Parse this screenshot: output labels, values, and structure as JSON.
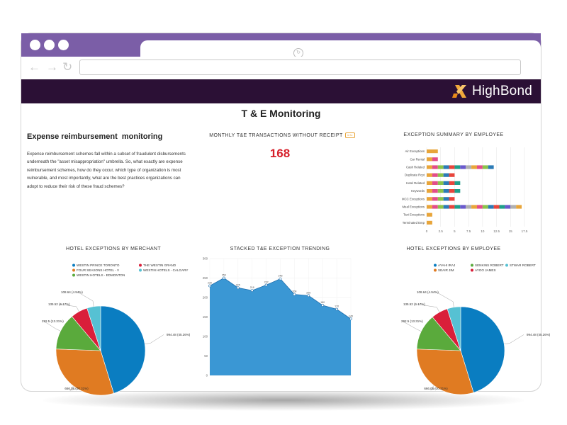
{
  "browser": {
    "tab_icon": "reload-icon",
    "nav_icons": [
      "back-arrow-icon",
      "forward-arrow-icon",
      "refresh-icon"
    ]
  },
  "app": {
    "brand": "HighBond",
    "brand_color": "#f0a93b",
    "header_color": "#2b1035",
    "frame_color": "#7b5ea7"
  },
  "page": {
    "title": "T & E Monitoring"
  },
  "intro": {
    "title": "Expense reimbursement  monitoring",
    "text": "Expense reimbursement schemes fall within a subset of fraudulent disbursements underneath the \"asset misappropriation\" umbrella. So, what exactly are expense reimbursement schemes, how do they occur, which type of organization is most vulnerable, and most importantly, what are the best practices organizations can adopt to reduce their risk of these fraud schemes?"
  },
  "kpi": {
    "title": "MONTHLY T&E TRANSACTIONS WITHOUT RECEIPT",
    "badge": "info",
    "value": "168",
    "color": "#d61f2a"
  },
  "charts": {
    "exception_summary_title": "EXCEPTION SUMMARY BY EMPLOYEE",
    "merchant_title": "HOTEL EXCEPTIONS BY MERCHANT",
    "trend_title": "STACKED T&E EXCEPTION TRENDING",
    "employee_title": "HOTEL EXCEPTIONS BY EMPLOYEE"
  },
  "chart_data": [
    {
      "type": "bar",
      "orientation": "horizontal",
      "stacked": true,
      "title": "EXCEPTION SUMMARY BY EMPLOYEE",
      "categories": [
        "Air Exceptions",
        "Car Rental",
        "Cash Related",
        "Duplicate Rcpt",
        "Hotel Related",
        "Keywords",
        "MCC Exceptions",
        "Meal Exceptions",
        "Taxi Exceptions",
        "Terminated Emp"
      ],
      "xlim": [
        0,
        17.5
      ],
      "xticks": [
        0,
        2.5,
        5,
        7.5,
        10,
        12.5,
        15,
        17.5
      ],
      "grid": true,
      "palette": [
        "#e8a53a",
        "#e34d8a",
        "#8bc34a",
        "#2c7bb6",
        "#e8453c",
        "#1f9f8a",
        "#6a5acd",
        "#b0b0b0"
      ],
      "segments": [
        [
          2
        ],
        [
          1,
          1
        ],
        [
          1,
          1,
          1,
          1,
          1,
          1,
          1,
          1,
          1,
          1,
          1,
          1
        ],
        [
          1,
          1,
          1,
          1,
          1
        ],
        [
          1,
          1,
          1,
          1,
          1,
          1
        ],
        [
          1,
          1,
          1,
          1,
          1,
          1
        ],
        [
          1,
          1,
          1,
          1,
          1
        ],
        [
          1,
          1,
          1,
          1,
          1,
          1,
          1,
          1,
          1,
          1,
          1,
          1,
          1,
          1,
          1,
          1,
          1
        ],
        [
          1
        ],
        [
          1
        ]
      ]
    },
    {
      "type": "pie",
      "title": "HOTEL EXCEPTIONS BY MERCHANT",
      "legend_position": "top",
      "series": [
        {
          "name": "WESTIN PRINCE TORONTO",
          "value": 994.48,
          "label": "994.48 (45.26%)",
          "color": "#0a7dc1"
        },
        {
          "name": "FOUR SEASONS HOTEL - V",
          "value": 666.08,
          "label": "666.08 (30.31%)",
          "color": "#e07b22"
        },
        {
          "name": "WESTIN HOTELS - EDMONTON",
          "value": 292.5,
          "label": "292.5 (13.31%)",
          "color": "#5aaa3c"
        },
        {
          "name": "THE WESTIN GRAND",
          "value": 135.52,
          "label": "135.52 (6.17%)",
          "color": "#d91f3a"
        },
        {
          "name": "WESTIN HOTELS - CALGARY",
          "value": 108.64,
          "label": "108.64 (4.94%)",
          "color": "#56c1d3"
        }
      ]
    },
    {
      "type": "area",
      "title": "STACKED T&E EXCEPTION TRENDING",
      "ylim": [
        0,
        300
      ],
      "yticks": [
        0,
        50,
        100,
        150,
        200,
        250,
        300
      ],
      "grid": true,
      "color": "#3a97d4",
      "values": [
        230,
        250,
        225,
        218,
        232,
        248,
        208,
        205,
        180,
        170,
        145
      ]
    },
    {
      "type": "pie",
      "title": "HOTEL EXCEPTIONS BY EMPLOYEE",
      "legend_position": "top",
      "series": [
        {
          "name": "AYAHI IRAJ",
          "value": 994.48,
          "label": "994.48 (45.26%)",
          "color": "#0a7dc1"
        },
        {
          "name": "SEAIR JIM",
          "value": 666.08,
          "label": "666.08 (30.31%)",
          "color": "#e07b22"
        },
        {
          "name": "SENKINS ROBERT",
          "value": 292.5,
          "label": "292.5 (13.31%)",
          "color": "#5aaa3c"
        },
        {
          "name": "AYOO JAMES",
          "value": 135.52,
          "label": "135.52 (6.17%)",
          "color": "#d91f3a"
        },
        {
          "name": "STWAR ROBERT",
          "value": 108.64,
          "label": "108.64 (4.94%)",
          "color": "#56c1d3"
        }
      ]
    }
  ]
}
